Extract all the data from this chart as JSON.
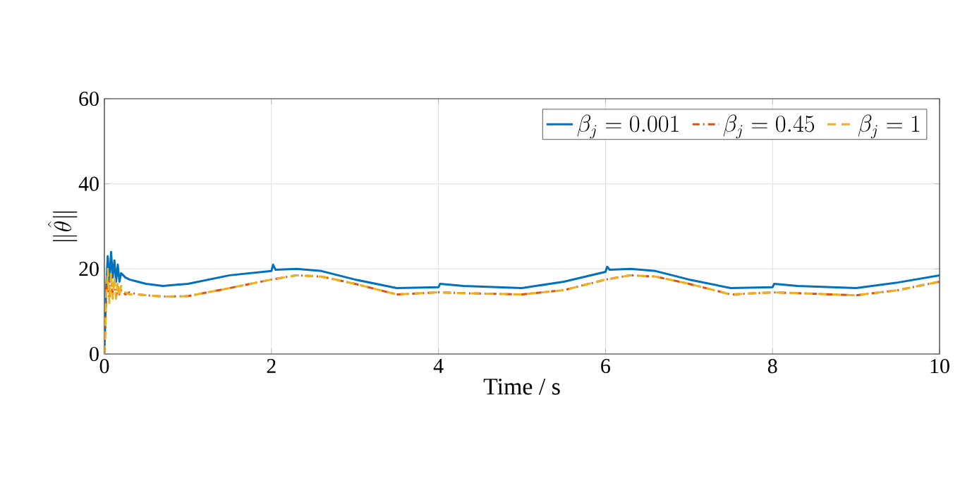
{
  "chart_data": {
    "type": "line",
    "xlabel": "Time / s",
    "ylabel": "\\|\\hat{\\theta}\\|",
    "xlim": [
      0,
      10
    ],
    "ylim": [
      0,
      60
    ],
    "xticks": [
      0,
      2,
      4,
      6,
      8,
      10
    ],
    "yticks": [
      0,
      20,
      40,
      60
    ],
    "grid": true,
    "legend": "top right",
    "series": [
      {
        "name": "\\beta_j = 0.001",
        "color": "#0072bd",
        "line_style": "solid",
        "x": [
          0,
          0.02,
          0.04,
          0.06,
          0.08,
          0.1,
          0.12,
          0.14,
          0.16,
          0.18,
          0.2,
          0.25,
          0.3,
          0.4,
          0.5,
          0.7,
          1.0,
          1.5,
          2.0,
          2.02,
          2.05,
          2.3,
          2.6,
          3.0,
          3.5,
          4.0,
          4.02,
          4.3,
          5.0,
          5.5,
          6.0,
          6.02,
          6.05,
          6.3,
          6.6,
          7.0,
          7.5,
          8.0,
          8.02,
          8.3,
          9.0,
          9.5,
          10.0
        ],
        "values": [
          0,
          15,
          23,
          17,
          24,
          18,
          22,
          17,
          21,
          17,
          19,
          18,
          17.5,
          17,
          16.5,
          16,
          16.5,
          18.5,
          19.5,
          21,
          19.8,
          20,
          19.5,
          17.5,
          15.5,
          15.7,
          16.5,
          16,
          15.5,
          17,
          19.3,
          20.5,
          19.8,
          20,
          19.5,
          17.5,
          15.5,
          15.7,
          16.5,
          16,
          15.5,
          16.8,
          18.5
        ]
      },
      {
        "name": "\\beta_j = 0.45",
        "color": "#d95319",
        "line_style": "dashdot",
        "x": [
          0,
          0.02,
          0.04,
          0.06,
          0.08,
          0.1,
          0.12,
          0.14,
          0.16,
          0.18,
          0.2,
          0.25,
          0.3,
          0.4,
          0.5,
          0.7,
          1.0,
          1.5,
          2.0,
          2.3,
          2.6,
          3.0,
          3.5,
          4.0,
          4.3,
          5.0,
          5.5,
          6.0,
          6.3,
          6.6,
          7.0,
          7.5,
          8.0,
          8.3,
          9.0,
          9.5,
          10.0
        ],
        "values": [
          0,
          12,
          19,
          13,
          18,
          14,
          17,
          13.5,
          16,
          14,
          15,
          14,
          14.5,
          14,
          13.8,
          13.5,
          13.6,
          15.5,
          17.5,
          18.5,
          18.2,
          16.5,
          14,
          14.5,
          14.3,
          14,
          15,
          17.5,
          18.5,
          18.2,
          16.5,
          14,
          14.5,
          14.3,
          13.8,
          15,
          17
        ]
      },
      {
        "name": "\\beta_j = 1",
        "color": "#edb120",
        "line_style": "dashed",
        "x": [
          0,
          0.02,
          0.04,
          0.06,
          0.08,
          0.1,
          0.12,
          0.14,
          0.16,
          0.18,
          0.2,
          0.25,
          0.3,
          0.4,
          0.5,
          0.7,
          1.0,
          1.5,
          2.0,
          2.3,
          2.6,
          3.0,
          3.5,
          4.0,
          4.3,
          5.0,
          5.5,
          6.0,
          6.3,
          6.6,
          7.0,
          7.5,
          8.0,
          8.3,
          9.0,
          9.5,
          10.0
        ],
        "values": [
          0,
          13,
          20,
          12,
          19,
          13,
          18,
          13,
          17,
          13.5,
          16,
          14.5,
          14,
          14,
          13.8,
          13.5,
          13.6,
          15.5,
          17.5,
          18.5,
          18.2,
          16.5,
          14,
          14.5,
          14.3,
          14,
          15,
          17.5,
          18.5,
          18.2,
          16.5,
          14,
          14.5,
          14.3,
          13.8,
          15,
          17
        ]
      }
    ]
  }
}
